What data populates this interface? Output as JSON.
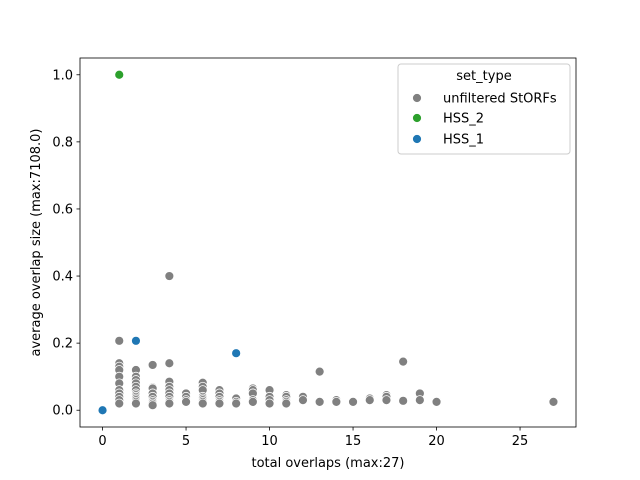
{
  "chart_data": {
    "type": "scatter",
    "xlabel": "total overlaps (max:27)",
    "ylabel": "average overlap size (max:7108.0)",
    "xlim": [
      -1.35,
      28.35
    ],
    "ylim": [
      -0.05,
      1.05
    ],
    "xticks": [
      0,
      5,
      10,
      15,
      20,
      25
    ],
    "yticks": [
      0.0,
      0.2,
      0.4,
      0.6,
      0.8,
      1.0
    ],
    "xtick_labels": [
      "0",
      "5",
      "10",
      "15",
      "20",
      "25"
    ],
    "ytick_labels": [
      "0.0",
      "0.2",
      "0.4",
      "0.6",
      "0.8",
      "1.0"
    ],
    "grid": false,
    "legend": {
      "title": "set_type",
      "placement": "upper-right",
      "entries": [
        "unfiltered StORFs",
        "HSS_2",
        "HSS_1"
      ]
    },
    "series": [
      {
        "name": "unfiltered StORFs",
        "color": "#808080",
        "points": [
          [
            1,
            0.207
          ],
          [
            1,
            0.14
          ],
          [
            1,
            0.13
          ],
          [
            1,
            0.12
          ],
          [
            1,
            0.1
          ],
          [
            1,
            0.08
          ],
          [
            1,
            0.06
          ],
          [
            1,
            0.05
          ],
          [
            1,
            0.04
          ],
          [
            1,
            0.03
          ],
          [
            1,
            0.02
          ],
          [
            2,
            0.12
          ],
          [
            2,
            0.1
          ],
          [
            2,
            0.09
          ],
          [
            2,
            0.08
          ],
          [
            2,
            0.07
          ],
          [
            2,
            0.06
          ],
          [
            2,
            0.05
          ],
          [
            2,
            0.045
          ],
          [
            2,
            0.04
          ],
          [
            2,
            0.035
          ],
          [
            2,
            0.03
          ],
          [
            2,
            0.025
          ],
          [
            2,
            0.02
          ],
          [
            3,
            0.135
          ],
          [
            3,
            0.068
          ],
          [
            3,
            0.065
          ],
          [
            3,
            0.05
          ],
          [
            3,
            0.04
          ],
          [
            3,
            0.03
          ],
          [
            3,
            0.025
          ],
          [
            3,
            0.02
          ],
          [
            3,
            0.015
          ],
          [
            4,
            0.4
          ],
          [
            4,
            0.14
          ],
          [
            4,
            0.085
          ],
          [
            4,
            0.07
          ],
          [
            4,
            0.06
          ],
          [
            4,
            0.05
          ],
          [
            4,
            0.04
          ],
          [
            4,
            0.03
          ],
          [
            4,
            0.025
          ],
          [
            4,
            0.02
          ],
          [
            5,
            0.05
          ],
          [
            5,
            0.04
          ],
          [
            5,
            0.03
          ],
          [
            5,
            0.025
          ],
          [
            6,
            0.082
          ],
          [
            6,
            0.07
          ],
          [
            6,
            0.06
          ],
          [
            6,
            0.04
          ],
          [
            6,
            0.035
          ],
          [
            6,
            0.03
          ],
          [
            6,
            0.025
          ],
          [
            6,
            0.02
          ],
          [
            7,
            0.06
          ],
          [
            7,
            0.05
          ],
          [
            7,
            0.04
          ],
          [
            7,
            0.03
          ],
          [
            7,
            0.025
          ],
          [
            7,
            0.02
          ],
          [
            8,
            0.035
          ],
          [
            8,
            0.025
          ],
          [
            8,
            0.02
          ],
          [
            9,
            0.065
          ],
          [
            9,
            0.06
          ],
          [
            9,
            0.05
          ],
          [
            9,
            0.03
          ],
          [
            9,
            0.025
          ],
          [
            10,
            0.06
          ],
          [
            10,
            0.04
          ],
          [
            10,
            0.03
          ],
          [
            10,
            0.02
          ],
          [
            11,
            0.045
          ],
          [
            11,
            0.04
          ],
          [
            11,
            0.03
          ],
          [
            11,
            0.025
          ],
          [
            11,
            0.02
          ],
          [
            12,
            0.04
          ],
          [
            12,
            0.03
          ],
          [
            13,
            0.115
          ],
          [
            13,
            0.025
          ],
          [
            14,
            0.03
          ],
          [
            14,
            0.025
          ],
          [
            15,
            0.025
          ],
          [
            16,
            0.035
          ],
          [
            16,
            0.03
          ],
          [
            17,
            0.045
          ],
          [
            17,
            0.04
          ],
          [
            17,
            0.03
          ],
          [
            18,
            0.145
          ],
          [
            18,
            0.028
          ],
          [
            19,
            0.05
          ],
          [
            19,
            0.03
          ],
          [
            20,
            0.025
          ],
          [
            27,
            0.025
          ]
        ]
      },
      {
        "name": "HSS_2",
        "color": "#2ca02c",
        "points": [
          [
            1,
            1.0
          ]
        ]
      },
      {
        "name": "HSS_1",
        "color": "#1f77b4",
        "points": [
          [
            0,
            0.0
          ],
          [
            2,
            0.207
          ],
          [
            8,
            0.17
          ]
        ]
      }
    ]
  }
}
